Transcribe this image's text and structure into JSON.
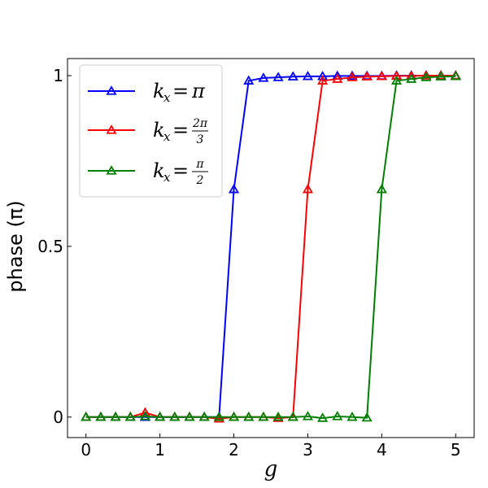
{
  "chart_data": {
    "type": "line",
    "xlabel": "g",
    "ylabel": "phase (π)",
    "xlim": [
      -0.25,
      5.25
    ],
    "ylim": [
      -0.06,
      1.05
    ],
    "xticks": [
      0,
      1,
      2,
      3,
      4,
      5
    ],
    "xtick_labels": [
      "0",
      "1",
      "2",
      "3",
      "4",
      "5"
    ],
    "yticks": [
      0,
      0.5,
      1
    ],
    "ytick_labels": [
      "0",
      "0.5",
      "1"
    ],
    "grid": false,
    "legend_position": "top-left",
    "x": [
      0,
      0.2,
      0.4,
      0.6,
      0.8,
      1.0,
      1.2,
      1.4,
      1.6,
      1.8,
      2.0,
      2.2,
      2.4,
      2.6,
      2.8,
      3.0,
      3.2,
      3.4,
      3.6,
      3.8,
      4.0,
      4.2,
      4.4,
      4.6,
      4.8,
      5.0
    ],
    "series": [
      {
        "name": "k_x = π",
        "legend": {
          "base": "k",
          "sub": "x",
          "eq": " = ",
          "rhs": "π"
        },
        "color": "#0000ff",
        "marker": "triangle-open",
        "values": [
          0,
          0,
          0,
          0,
          0,
          0,
          0,
          0,
          0,
          0,
          0.667,
          0.985,
          0.993,
          0.995,
          0.997,
          0.998,
          0.998,
          0.999,
          0.999,
          0.999,
          0.999,
          1.0,
          1.0,
          1.0,
          1.0,
          1.0
        ]
      },
      {
        "name": "k_x = 2π/3",
        "legend": {
          "base": "k",
          "sub": "x",
          "eq": " = ",
          "num": "2π",
          "den": "3"
        },
        "color": "#ff0000",
        "marker": "triangle-open",
        "values": [
          0,
          0,
          0,
          0,
          0.013,
          0,
          0,
          0,
          0,
          -0.005,
          0,
          0,
          0,
          -0.003,
          0,
          0.667,
          0.985,
          0.99,
          0.995,
          0.997,
          0.998,
          0.999,
          0.999,
          1.0,
          1.0,
          1.0
        ]
      },
      {
        "name": "k_x = π/2",
        "legend": {
          "base": "k",
          "sub": "x",
          "eq": " = ",
          "num": "π",
          "den": "2"
        },
        "color": "#008000",
        "marker": "triangle-open",
        "values": [
          0,
          0,
          0,
          0,
          0.002,
          0,
          0,
          0,
          0,
          0,
          0,
          0,
          0,
          0,
          0,
          0.002,
          -0.003,
          0.002,
          0,
          -0.002,
          0.667,
          0.985,
          0.99,
          0.995,
          0.997,
          0.998
        ]
      }
    ]
  }
}
